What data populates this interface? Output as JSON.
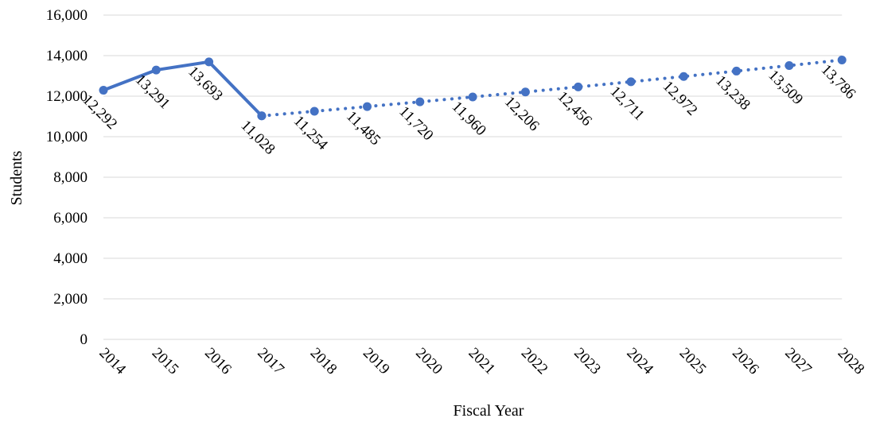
{
  "chart_data": {
    "type": "line",
    "xlabel": "Fiscal Year",
    "ylabel": "Students",
    "ylim": [
      0,
      16000
    ],
    "yticks": [
      "0",
      "2,000",
      "4,000",
      "6,000",
      "8,000",
      "10,000",
      "12,000",
      "14,000",
      "16,000"
    ],
    "ytick_values": [
      0,
      2000,
      4000,
      6000,
      8000,
      10000,
      12000,
      14000,
      16000
    ],
    "grid": true,
    "legend": "none",
    "x": [
      "2014",
      "2015",
      "2016",
      "2017",
      "2018",
      "2019",
      "2020",
      "2021",
      "2022",
      "2023",
      "2024",
      "2025",
      "2026",
      "2027",
      "2028"
    ],
    "series": [
      {
        "style": "solid",
        "color": "#4472c4",
        "x": [
          "2014",
          "2015",
          "2016",
          "2017"
        ],
        "values": [
          12292,
          13291,
          13693,
          11028
        ],
        "labels": [
          "12,292",
          "13,291",
          "13,693",
          "11,028"
        ]
      },
      {
        "style": "dotted",
        "color": "#4472c4",
        "x": [
          "2017",
          "2018",
          "2019",
          "2020",
          "2021",
          "2022",
          "2023",
          "2024",
          "2025",
          "2026",
          "2027",
          "2028"
        ],
        "values": [
          11028,
          11254,
          11485,
          11720,
          11960,
          12206,
          12456,
          12711,
          12972,
          13238,
          13509,
          13786
        ],
        "labels": [
          "",
          "11,254",
          "11,485",
          "11,720",
          "11,960",
          "12,206",
          "12,456",
          "12,711",
          "12,972",
          "13,238",
          "13,509",
          "13,786"
        ]
      }
    ]
  }
}
